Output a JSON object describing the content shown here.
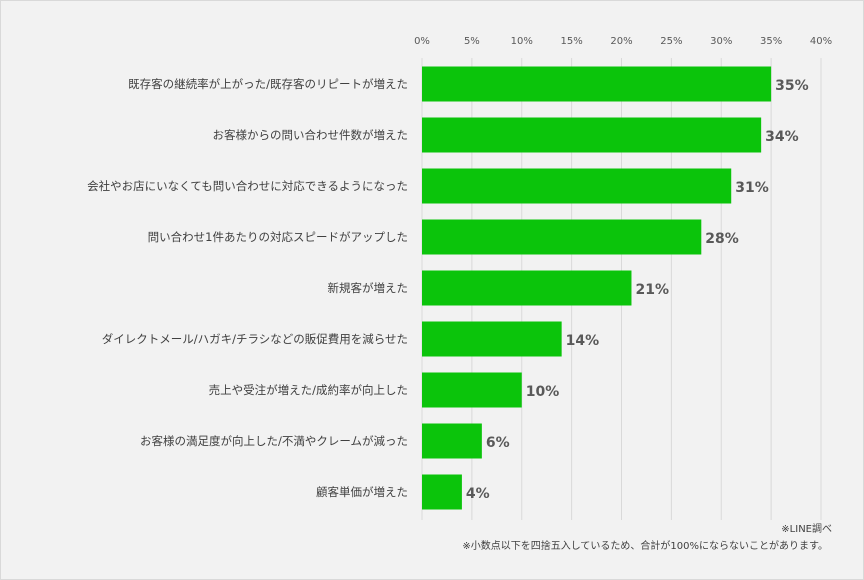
{
  "chart_data": {
    "type": "bar",
    "orientation": "horizontal",
    "categories": [
      "既存客の継続率が上がった/既存客のリピートが増えた",
      "お客様からの問い合わせ件数が増えた",
      "会社やお店にいなくても問い合わせに対応できるようになった",
      "問い合わせ1件あたりの対応スピードがアップした",
      "新規客が増えた",
      "ダイレクトメール/ハガキ/チラシなどの販促費用を減らせた",
      "売上や受注が増えた/成約率が向上した",
      "お客様の満足度が向上した/不満やクレームが減った",
      "顧客単価が増えた"
    ],
    "values": [
      35,
      34,
      31,
      28,
      21,
      14,
      10,
      6,
      4
    ],
    "data_labels": [
      "35%",
      "34%",
      "31%",
      "28%",
      "21%",
      "14%",
      "10%",
      "6%",
      "4%"
    ],
    "xlim": [
      0,
      40
    ],
    "x_ticks": [
      0,
      5,
      10,
      15,
      20,
      25,
      30,
      35,
      40
    ],
    "x_tick_labels": [
      "0%",
      "5%",
      "10%",
      "15%",
      "20%",
      "25%",
      "30%",
      "35%",
      "40%"
    ],
    "axis_position": "top",
    "grid": true,
    "bar_color": "#0bc40b"
  },
  "notes": {
    "source": "※LINE調べ",
    "rounding": "※小数点以下を四捨五入しているため、合計が100%にならないことがあります。"
  }
}
